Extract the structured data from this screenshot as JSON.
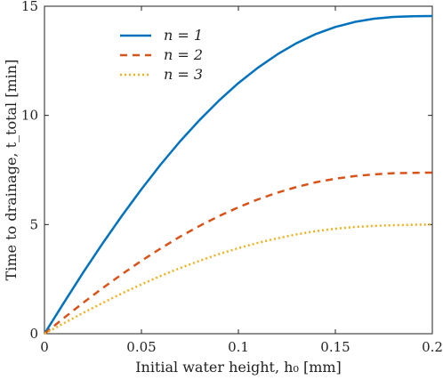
{
  "chart_data": {
    "type": "line",
    "xlabel": "Initial water height, h₀ [mm]",
    "ylabel": "Time to drainage, t_total [min]",
    "xlim": [
      0,
      0.2
    ],
    "ylim": [
      0,
      15
    ],
    "xticks": [
      0,
      0.05,
      0.1,
      0.15,
      0.2
    ],
    "xtick_labels": [
      "0",
      "0.05",
      "0.1",
      "0.15",
      "0.2"
    ],
    "yticks": [
      0,
      5,
      10,
      15
    ],
    "ytick_labels": [
      "0",
      "5",
      "10",
      "15"
    ],
    "grid": false,
    "legend_position": "top-left",
    "x": [
      0,
      0.01,
      0.02,
      0.03,
      0.04,
      0.05,
      0.06,
      0.07,
      0.08,
      0.09,
      0.1,
      0.11,
      0.12,
      0.13,
      0.14,
      0.15,
      0.16,
      0.17,
      0.18,
      0.19,
      0.2
    ],
    "series": [
      {
        "name": "n = 1",
        "color": "#0072BD",
        "dash": "solid",
        "values": [
          0,
          1.42,
          2.81,
          4.14,
          5.41,
          6.62,
          7.76,
          8.82,
          9.79,
          10.68,
          11.48,
          12.18,
          12.79,
          13.31,
          13.73,
          14.05,
          14.28,
          14.43,
          14.51,
          14.54,
          14.55
        ]
      },
      {
        "name": "n = 2",
        "color": "#D95319",
        "dash": "dashed",
        "values": [
          0,
          0.72,
          1.42,
          2.09,
          2.73,
          3.34,
          3.91,
          4.45,
          4.94,
          5.39,
          5.79,
          6.15,
          6.46,
          6.72,
          6.94,
          7.1,
          7.22,
          7.3,
          7.35,
          7.37,
          7.38
        ]
      },
      {
        "name": "n = 3",
        "color": "#EDB120",
        "dash": "dotted",
        "values": [
          0,
          0.48,
          0.96,
          1.41,
          1.85,
          2.26,
          2.65,
          3.01,
          3.34,
          3.65,
          3.92,
          4.16,
          4.37,
          4.55,
          4.7,
          4.81,
          4.89,
          4.94,
          4.97,
          4.99,
          5.0
        ]
      }
    ]
  }
}
